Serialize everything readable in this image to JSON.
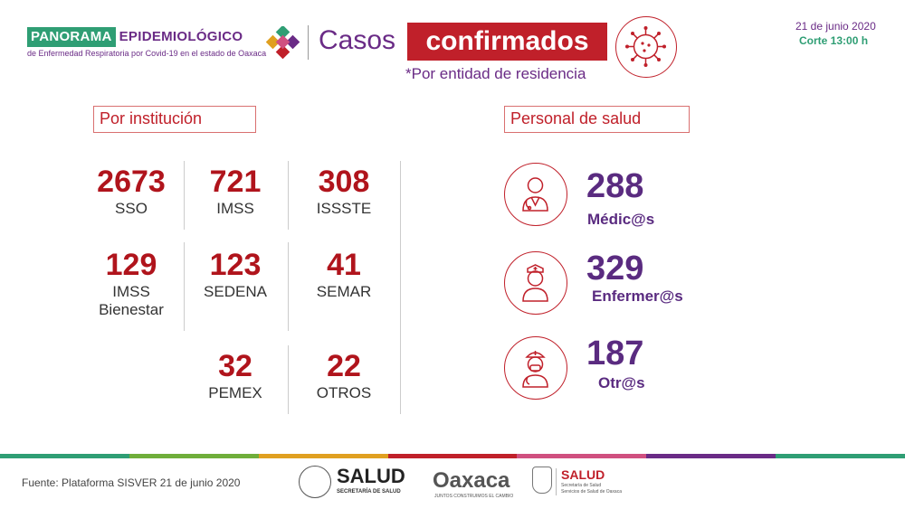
{
  "header": {
    "brand_left": "PANORAMA",
    "brand_right": "EPIDEMIOLÓGICO",
    "brand_sub": "de Enfermedad Respiratoria por Covid-19 en el estado de Oaxaca",
    "casos": "Casos",
    "confirmados": "confirmados",
    "residencia": "*Por entidad de residencia",
    "date": "21 de junio 2020",
    "corte": "Corte 13:00 h"
  },
  "institucion": {
    "title": "Por institución",
    "items": [
      {
        "value": "2673",
        "label": "SSO"
      },
      {
        "value": "721",
        "label": "IMSS"
      },
      {
        "value": "308",
        "label": "ISSSTE"
      },
      {
        "value": "129",
        "label": "IMSS",
        "label2": "Bienestar"
      },
      {
        "value": "123",
        "label": "SEDENA"
      },
      {
        "value": "41",
        "label": "SEMAR"
      },
      {
        "value": "32",
        "label": "PEMEX"
      },
      {
        "value": "22",
        "label": "OTROS"
      }
    ]
  },
  "personal": {
    "title": "Personal de salud",
    "items": [
      {
        "value": "288",
        "label": "Médic@s",
        "icon": "doctor-icon"
      },
      {
        "value": "329",
        "label": "Enfermer@s",
        "icon": "nurse-icon"
      },
      {
        "value": "187",
        "label": "Otr@s",
        "icon": "medic-icon"
      }
    ]
  },
  "footer": {
    "fuente": "Fuente: Plataforma SISVER 21 de junio 2020",
    "salud": "SALUD",
    "salud_sub": "SECRETARÍA DE SALUD",
    "oaxaca": "Oaxaca",
    "oaxaca_sub": "JUNTOS CONSTRUIMOS EL CAMBIO",
    "salud2": "SALUD",
    "salud2_sub": "Secretaría de Salud",
    "salud2_sub2": "Servicios de Salud de Oaxaca"
  },
  "colors": {
    "green": "#2f9e74",
    "purple": "#6a2b86",
    "red": "#c0202a"
  }
}
